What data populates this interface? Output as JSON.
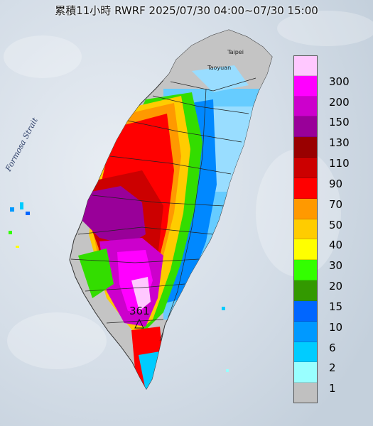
{
  "title": "累積11小時 RWRF 2025/07/30 04:00~07/30 15:00",
  "labels": {
    "strait": "Formosa Strait",
    "taipei": "Taipei",
    "taoyuan": "Taoyuan",
    "max_value": "361"
  },
  "legend": {
    "unit_levels": [
      {
        "label": "300",
        "color": "#ffc8ff"
      },
      {
        "label": "200",
        "color": "#ff00ff"
      },
      {
        "label": "150",
        "color": "#cc00cc"
      },
      {
        "label": "130",
        "color": "#990099"
      },
      {
        "label": "110",
        "color": "#990000"
      },
      {
        "label": "90",
        "color": "#cc0000"
      },
      {
        "label": "70",
        "color": "#ff0000"
      },
      {
        "label": "50",
        "color": "#ff9900"
      },
      {
        "label": "40",
        "color": "#ffcc00"
      },
      {
        "label": "30",
        "color": "#ffff00"
      },
      {
        "label": "20",
        "color": "#33ff00"
      },
      {
        "label": "15",
        "color": "#339900"
      },
      {
        "label": "10",
        "color": "#0066ff"
      },
      {
        "label": "6",
        "color": "#0099ff"
      },
      {
        "label": "2",
        "color": "#00ccff"
      },
      {
        "label": "1",
        "color": "#99ffff"
      },
      {
        "label": "",
        "color": "#c0c0c0"
      }
    ]
  }
}
